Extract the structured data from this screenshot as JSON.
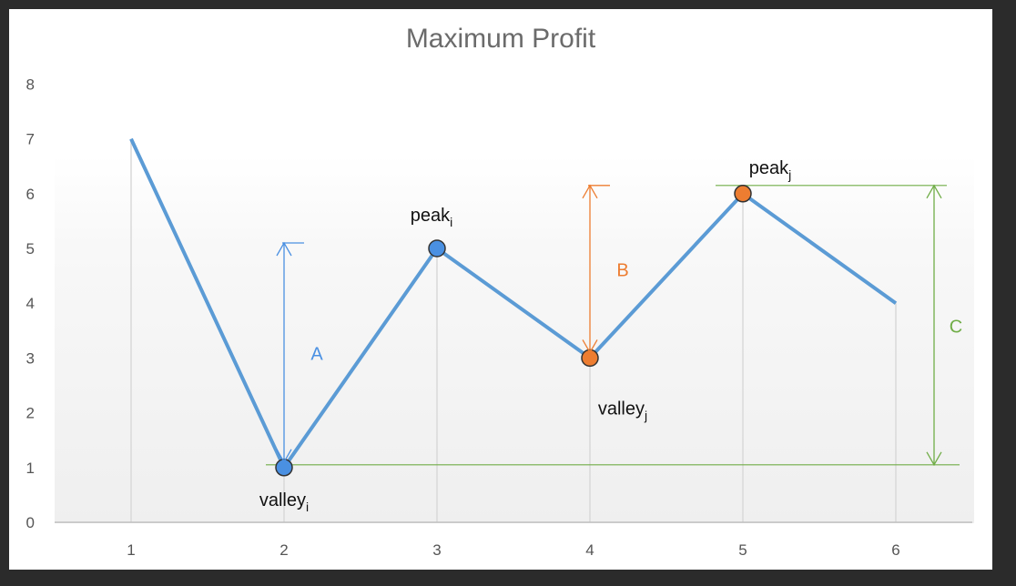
{
  "chart_data": {
    "type": "line",
    "title": "Maximum Profit",
    "x": [
      1,
      2,
      3,
      4,
      5,
      6
    ],
    "categories": [
      "1",
      "2",
      "3",
      "4",
      "5",
      "6"
    ],
    "values": [
      7,
      1,
      5,
      3,
      6,
      4
    ],
    "ylim": [
      0,
      8
    ],
    "yticks": [
      "0",
      "1",
      "2",
      "3",
      "4",
      "5",
      "6",
      "7",
      "8"
    ],
    "grid": "vertical",
    "colors": {
      "line": "#5b9bd5",
      "blue_marker": "#4a90e2",
      "orange_marker": "#ed7d31",
      "green": "#70ad47",
      "gridline": "#d9d9d9"
    },
    "markers": [
      {
        "x": 2,
        "y": 1,
        "color": "blue_marker",
        "label": "valley",
        "sub": "i"
      },
      {
        "x": 3,
        "y": 5,
        "color": "blue_marker",
        "label": "peak",
        "sub": "i"
      },
      {
        "x": 4,
        "y": 3,
        "color": "orange_marker",
        "label": "valley",
        "sub": "j"
      },
      {
        "x": 5,
        "y": 6,
        "color": "orange_marker",
        "label": "peak",
        "sub": "j"
      }
    ],
    "annotations": [
      {
        "label": "A",
        "from": 1,
        "to": 5,
        "x": 2,
        "color": "blue_marker"
      },
      {
        "label": "B",
        "from": 3,
        "to": 6,
        "x": 4,
        "color": "orange_marker"
      },
      {
        "label": "C",
        "from": 1,
        "to": 6,
        "x": 6.25,
        "color": "green"
      }
    ]
  }
}
